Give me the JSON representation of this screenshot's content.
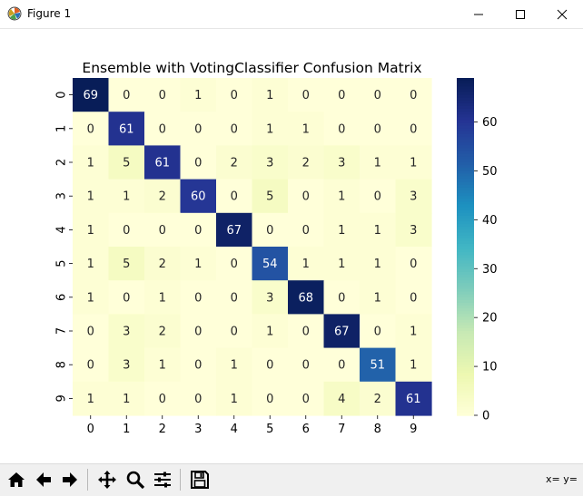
{
  "window": {
    "title": "Figure 1",
    "icon": "matplotlib-icon",
    "controls": [
      "minimize-icon",
      "maximize-icon",
      "close-icon"
    ]
  },
  "chart_data": {
    "type": "heatmap",
    "title": "Ensemble with VotingClassifier Confusion Matrix",
    "xlabel": "",
    "ylabel": "",
    "x_ticks": [
      "0",
      "1",
      "2",
      "3",
      "4",
      "5",
      "6",
      "7",
      "8",
      "9"
    ],
    "y_ticks": [
      "0",
      "1",
      "2",
      "3",
      "4",
      "5",
      "6",
      "7",
      "8",
      "9"
    ],
    "matrix": [
      [
        69,
        0,
        0,
        1,
        0,
        1,
        0,
        0,
        0,
        0
      ],
      [
        0,
        61,
        0,
        0,
        0,
        1,
        1,
        0,
        0,
        0
      ],
      [
        1,
        5,
        61,
        0,
        2,
        3,
        2,
        3,
        1,
        1
      ],
      [
        1,
        1,
        2,
        60,
        0,
        5,
        0,
        1,
        0,
        3
      ],
      [
        1,
        0,
        0,
        0,
        67,
        0,
        0,
        1,
        1,
        3
      ],
      [
        1,
        5,
        2,
        1,
        0,
        54,
        1,
        1,
        1,
        0
      ],
      [
        1,
        0,
        1,
        0,
        0,
        3,
        68,
        0,
        1,
        0
      ],
      [
        0,
        3,
        2,
        0,
        0,
        1,
        0,
        67,
        0,
        1
      ],
      [
        0,
        3,
        1,
        0,
        1,
        0,
        0,
        0,
        51,
        1
      ],
      [
        1,
        1,
        0,
        0,
        1,
        0,
        0,
        4,
        2,
        61
      ]
    ],
    "colormap": "YlGnBu",
    "colorbar": {
      "min": 0,
      "max": 69,
      "ticks": [
        0,
        10,
        20,
        30,
        40,
        50,
        60
      ]
    },
    "annotations": true
  },
  "toolbar": {
    "buttons": [
      {
        "name": "home-button",
        "icon": "home-icon"
      },
      {
        "name": "back-button",
        "icon": "arrow-left-icon"
      },
      {
        "name": "forward-button",
        "icon": "arrow-right-icon"
      },
      {
        "name": "pan-button",
        "icon": "move-icon"
      },
      {
        "name": "zoom-button",
        "icon": "magnifier-icon"
      },
      {
        "name": "configure-subplots-button",
        "icon": "sliders-icon"
      },
      {
        "name": "save-button",
        "icon": "floppy-disk-icon"
      }
    ],
    "coords_text": "x= y="
  }
}
